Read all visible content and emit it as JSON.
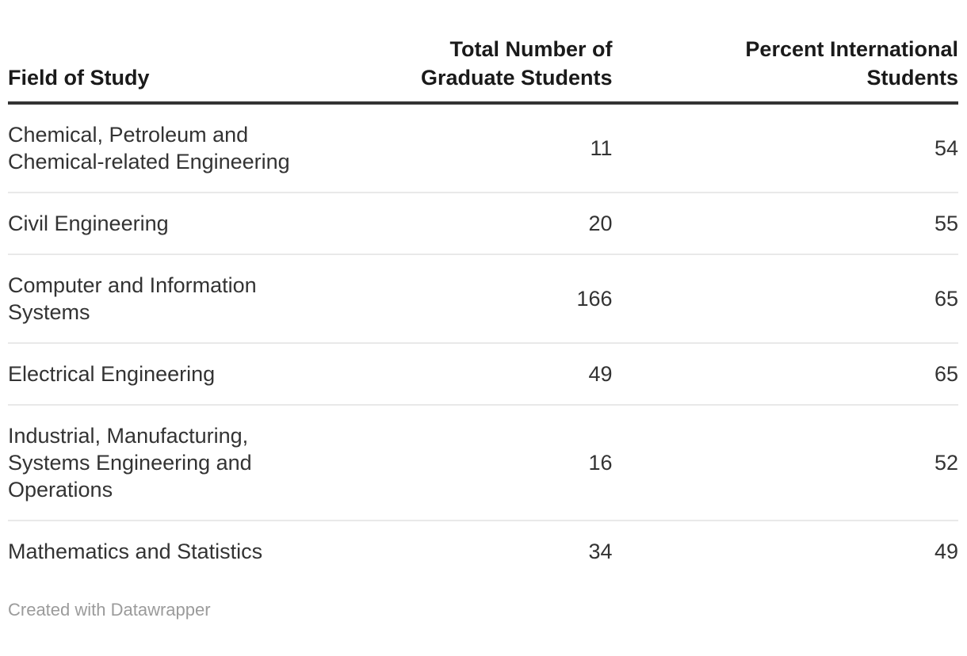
{
  "table": {
    "headers": [
      {
        "label": "Field of Study"
      },
      {
        "label": "Total Number of\nGraduate Students"
      },
      {
        "label": "Percent International\nStudents"
      }
    ],
    "rows": [
      {
        "field": "Chemical, Petroleum and\nChemical-related Engineering",
        "total": "11",
        "percent": "54"
      },
      {
        "field": "Civil Engineering",
        "total": "20",
        "percent": "55"
      },
      {
        "field": "Computer and Information\nSystems",
        "total": "166",
        "percent": "65"
      },
      {
        "field": "Electrical Engineering",
        "total": "49",
        "percent": "65"
      },
      {
        "field": "Industrial, Manufacturing,\nSystems Engineering and\nOperations",
        "total": "16",
        "percent": "52"
      },
      {
        "field": "Mathematics and Statistics",
        "total": "34",
        "percent": "49"
      }
    ]
  },
  "footer": {
    "attribution": "Created with Datawrapper"
  },
  "colors": {
    "background": "#ffffff",
    "header_text": "#1a1a1a",
    "body_text": "#333333",
    "header_border": "#333333",
    "row_divider": "#e9e9e9",
    "footer_text": "#9b9b9b"
  },
  "chart_data": {
    "type": "table",
    "columns": [
      "Field of Study",
      "Total Number of Graduate Students",
      "Percent International Students"
    ],
    "rows": [
      [
        "Chemical, Petroleum and Chemical-related Engineering",
        11,
        54
      ],
      [
        "Civil Engineering",
        20,
        55
      ],
      [
        "Computer and Information Systems",
        166,
        65
      ],
      [
        "Electrical Engineering",
        49,
        65
      ],
      [
        "Industrial, Manufacturing, Systems Engineering and Operations",
        16,
        52
      ],
      [
        "Mathematics and Statistics",
        34,
        49
      ]
    ]
  }
}
